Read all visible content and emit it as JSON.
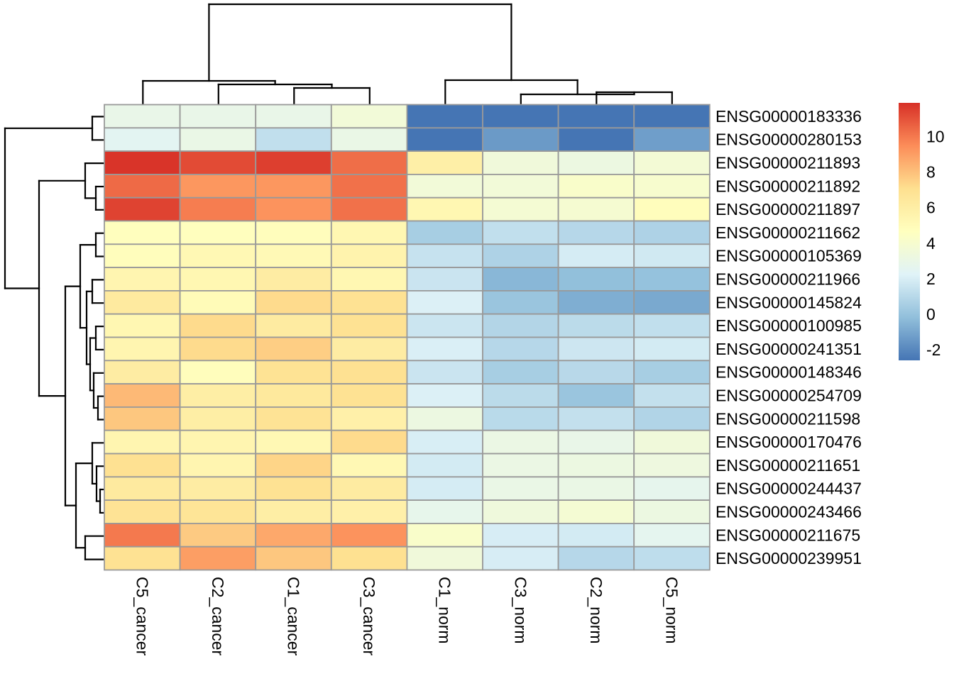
{
  "chart_data": {
    "type": "heatmap",
    "title": "",
    "legend_position": "right",
    "grid": false,
    "columns": [
      "C5_cancer",
      "C2_cancer",
      "C1_cancer",
      "C3_cancer",
      "C1_norm",
      "C3_norm",
      "C2_norm",
      "C5_norm"
    ],
    "rows": [
      "ENSG00000183336",
      "ENSG00000280153",
      "ENSG00000211893",
      "ENSG00000211892",
      "ENSG00000211897",
      "ENSG00000211662",
      "ENSG00000105369",
      "ENSG00000211966",
      "ENSG00000145824",
      "ENSG00000100985",
      "ENSG00000241351",
      "ENSG00000148346",
      "ENSG00000254709",
      "ENSG00000211598",
      "ENSG00000170476",
      "ENSG00000211651",
      "ENSG00000244437",
      "ENSG00000243466",
      "ENSG00000211675",
      "ENSG00000239951"
    ],
    "values": [
      [
        2.9,
        2.9,
        2.9,
        3.6,
        -2.6,
        -2.6,
        -2.6,
        -2.6
      ],
      [
        2.5,
        3.0,
        1.3,
        3.0,
        -2.6,
        -1.4,
        -2.6,
        -1.25
      ],
      [
        11.8,
        11.2,
        11.5,
        10.3,
        5.9,
        3.5,
        3.2,
        3.7
      ],
      [
        10.4,
        9.2,
        9.2,
        10.2,
        3.6,
        3.6,
        4.2,
        4.0
      ],
      [
        11.4,
        9.9,
        9.3,
        10.2,
        5.3,
        3.8,
        3.9,
        4.8
      ],
      [
        4.7,
        4.7,
        4.8,
        5.3,
        0.5,
        1.3,
        0.95,
        0.7
      ],
      [
        4.8,
        5.2,
        5.1,
        5.6,
        1.45,
        0.7,
        1.9,
        1.75
      ],
      [
        5.4,
        5.3,
        6.1,
        5.3,
        1.55,
        -0.45,
        -0.15,
        -0.05
      ],
      [
        6.3,
        5.0,
        7.2,
        6.9,
        2.1,
        0.1,
        -0.75,
        -0.9
      ],
      [
        5.3,
        7.2,
        6.2,
        6.9,
        1.6,
        0.85,
        1.1,
        1.3
      ],
      [
        5.4,
        7.2,
        7.6,
        6.1,
        2.05,
        0.95,
        1.65,
        1.85
      ],
      [
        6.1,
        4.8,
        6.85,
        6.95,
        1.55,
        0.5,
        1.0,
        0.5
      ],
      [
        8.2,
        6.0,
        6.4,
        6.9,
        2.1,
        1.1,
        0.1,
        1.35
      ],
      [
        7.8,
        6.0,
        6.8,
        5.8,
        3.2,
        1.05,
        1.35,
        0.8
      ],
      [
        5.4,
        5.4,
        5.2,
        7.2,
        2.0,
        3.1,
        2.9,
        3.5
      ],
      [
        6.95,
        5.4,
        7.4,
        5.2,
        1.85,
        3.1,
        3.2,
        3.3
      ],
      [
        6.3,
        6.1,
        6.9,
        6.2,
        1.9,
        3.0,
        3.05,
        2.7
      ],
      [
        6.8,
        6.7,
        6.0,
        5.8,
        2.8,
        3.4,
        3.8,
        3.2
      ],
      [
        10.0,
        7.7,
        8.7,
        9.3,
        4.2,
        1.95,
        1.85,
        2.6
      ],
      [
        6.9,
        9.0,
        7.8,
        7.0,
        3.5,
        1.95,
        0.95,
        1.2
      ]
    ],
    "color_scale": {
      "name": "RdYlBu-reversed",
      "stops": [
        "#4575b4",
        "#91bfdb",
        "#e0f3f8",
        "#ffffbf",
        "#fee090",
        "#fc8d59",
        "#d73027"
      ],
      "vmin": -2.6,
      "vmax": 11.9
    },
    "legend_ticks": [
      10,
      8,
      6,
      4,
      2,
      0,
      -2
    ],
    "legend_tick_labels": [
      "10",
      "8",
      "6",
      "4",
      "2",
      "0",
      "-2"
    ],
    "row_dendrogram_segments": [
      [
        130,
        164.4,
        148,
        164.4
      ],
      [
        130,
        197.3,
        148,
        197.3
      ],
      [
        130,
        164.4,
        130,
        197.3
      ],
      [
        135,
        263.0,
        148,
        263.0
      ],
      [
        135,
        295.8,
        148,
        295.8
      ],
      [
        135,
        263.0,
        135,
        295.8
      ],
      [
        120,
        230.1,
        148,
        230.1
      ],
      [
        120,
        279.4,
        135,
        279.4
      ],
      [
        120,
        230.1,
        120,
        279.4
      ],
      [
        135,
        328.7,
        148,
        328.7
      ],
      [
        135,
        361.5,
        148,
        361.5
      ],
      [
        135,
        328.7,
        135,
        361.5
      ],
      [
        130,
        394.4,
        148,
        394.4
      ],
      [
        130,
        427.2,
        148,
        427.2
      ],
      [
        130,
        394.4,
        130,
        427.2
      ],
      [
        135,
        460.1,
        148,
        460.1
      ],
      [
        135,
        492.9,
        148,
        492.9
      ],
      [
        135,
        460.1,
        135,
        492.9
      ],
      [
        138,
        558.6,
        148,
        558.6
      ],
      [
        138,
        591.5,
        148,
        591.5
      ],
      [
        138,
        558.6,
        138,
        591.5
      ],
      [
        132,
        525.8,
        148,
        525.8
      ],
      [
        132,
        575.0,
        138,
        575.0
      ],
      [
        132,
        525.8,
        132,
        575.0
      ],
      [
        127,
        476.5,
        135,
        476.5
      ],
      [
        127,
        550.4,
        132,
        550.4
      ],
      [
        127,
        476.5,
        127,
        550.4
      ],
      [
        122,
        410.8,
        130,
        410.8
      ],
      [
        122,
        513.5,
        127,
        513.5
      ],
      [
        122,
        410.8,
        122,
        513.5
      ],
      [
        113,
        345.1,
        135,
        345.1
      ],
      [
        113,
        462.1,
        122,
        462.1
      ],
      [
        113,
        345.1,
        113,
        462.1
      ],
      [
        141,
        690.0,
        148,
        690.0
      ],
      [
        141,
        722.9,
        148,
        722.9
      ],
      [
        141,
        690.0,
        141,
        722.9
      ],
      [
        136,
        657.2,
        148,
        657.2
      ],
      [
        136,
        706.5,
        141,
        706.5
      ],
      [
        136,
        657.2,
        136,
        706.5
      ],
      [
        130,
        624.3,
        148,
        624.3
      ],
      [
        130,
        681.9,
        136,
        681.9
      ],
      [
        130,
        624.3,
        130,
        681.9
      ],
      [
        120,
        755.7,
        148,
        755.7
      ],
      [
        120,
        788.6,
        148,
        788.6
      ],
      [
        120,
        755.7,
        120,
        788.6
      ],
      [
        107,
        653.1,
        130,
        653.1
      ],
      [
        107,
        772.2,
        120,
        772.2
      ],
      [
        107,
        653.1,
        107,
        772.2
      ],
      [
        92,
        403.6,
        113,
        403.6
      ],
      [
        92,
        712.6,
        107,
        712.6
      ],
      [
        92,
        403.6,
        92,
        712.6
      ],
      [
        55,
        254.8,
        120,
        254.8
      ],
      [
        55,
        558.1,
        92,
        558.1
      ],
      [
        55,
        254.8,
        55,
        558.1
      ],
      [
        7,
        180.8,
        130,
        180.8
      ],
      [
        7,
        406.5,
        55,
        406.5
      ],
      [
        7,
        180.8,
        7,
        406.5
      ]
    ],
    "col_dendrogram_segments": [
      [
        414.3,
        124,
        414.3,
        148
      ],
      [
        520.8,
        124,
        520.8,
        148
      ],
      [
        414.3,
        124,
        520.8,
        124
      ],
      [
        307.8,
        119,
        307.8,
        148
      ],
      [
        467.5,
        119,
        467.5,
        124
      ],
      [
        307.8,
        119,
        467.5,
        119
      ],
      [
        201.3,
        114,
        201.3,
        148
      ],
      [
        387.6,
        114,
        387.6,
        119
      ],
      [
        201.3,
        114,
        387.6,
        114
      ],
      [
        840.3,
        130,
        840.3,
        148
      ],
      [
        946.8,
        130,
        946.8,
        148
      ],
      [
        840.3,
        130,
        946.8,
        130
      ],
      [
        733.8,
        133,
        733.8,
        148
      ],
      [
        893.5,
        130,
        893.5,
        133
      ],
      [
        733.8,
        133,
        893.5,
        133
      ],
      [
        627.3,
        113,
        627.3,
        148
      ],
      [
        813.6,
        113,
        813.6,
        133
      ],
      [
        627.3,
        113,
        813.6,
        113
      ],
      [
        294.4,
        6,
        294.4,
        114
      ],
      [
        720.4,
        6,
        720.4,
        113
      ],
      [
        294.4,
        6,
        720.4,
        6
      ]
    ],
    "colors": {
      "cell_border": "#999999",
      "dendrogram_line": "#000000",
      "background": "#ffffff",
      "label_text": "#000000"
    }
  }
}
